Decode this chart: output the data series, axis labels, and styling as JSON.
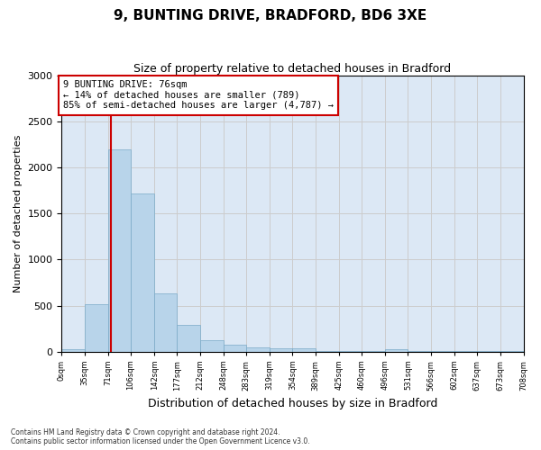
{
  "title1": "9, BUNTING DRIVE, BRADFORD, BD6 3XE",
  "title2": "Size of property relative to detached houses in Bradford",
  "xlabel": "Distribution of detached houses by size in Bradford",
  "ylabel": "Number of detached properties",
  "footnote": "Contains HM Land Registry data © Crown copyright and database right 2024.\nContains public sector information licensed under the Open Government Licence v3.0.",
  "bar_edges": [
    0,
    35,
    71,
    106,
    142,
    177,
    212,
    248,
    283,
    319,
    354,
    389,
    425,
    460,
    496,
    531,
    566,
    602,
    637,
    673,
    708
  ],
  "bar_heights": [
    30,
    520,
    2200,
    1720,
    635,
    295,
    125,
    75,
    45,
    35,
    35,
    5,
    5,
    5,
    30,
    5,
    5,
    5,
    5,
    5
  ],
  "bar_color": "#b8d4ea",
  "bar_edgecolor": "#7aaac8",
  "property_sqm": 76,
  "property_line_color": "#cc0000",
  "annotation_text": "9 BUNTING DRIVE: 76sqm\n← 14% of detached houses are smaller (789)\n85% of semi-detached houses are larger (4,787) →",
  "annotation_box_edgecolor": "#cc0000",
  "ylim": [
    0,
    3000
  ],
  "yticks": [
    0,
    500,
    1000,
    1500,
    2000,
    2500,
    3000
  ],
  "grid_color": "#cccccc",
  "background_color": "#dce8f5",
  "title1_fontsize": 11,
  "title2_fontsize": 9,
  "annotation_fontsize": 7.5,
  "ylabel_fontsize": 8,
  "xlabel_fontsize": 9,
  "footnote_fontsize": 5.5
}
